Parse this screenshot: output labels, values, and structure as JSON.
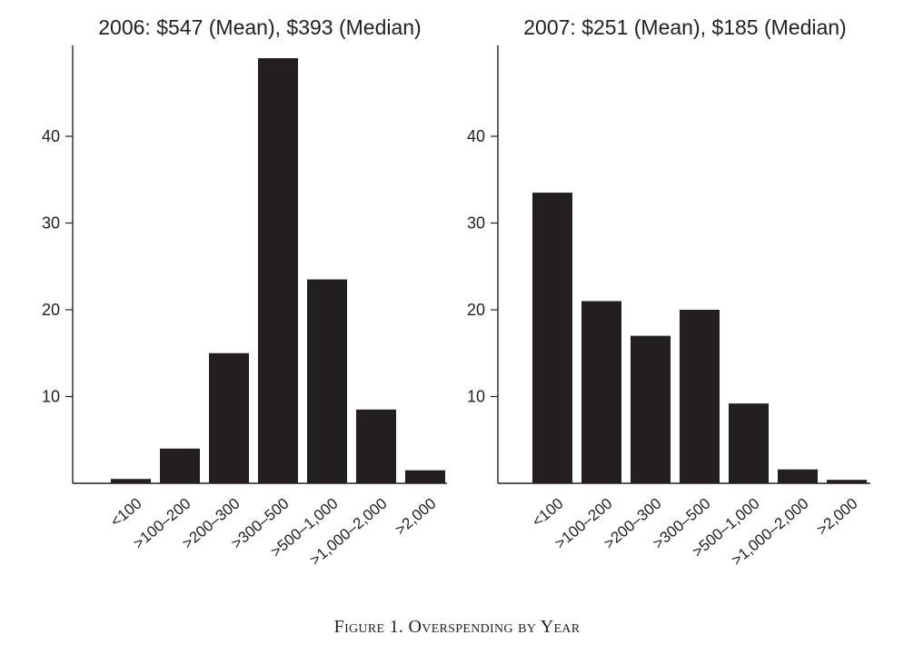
{
  "chart_data": [
    {
      "type": "bar",
      "title": "2006: $547 (Mean), $393 (Median)",
      "categories": [
        "<100",
        ">100–200",
        ">200–300",
        ">300–500",
        ">500–1,000",
        ">1,000–2,000",
        ">2,000"
      ],
      "values": [
        0.5,
        4,
        15,
        49,
        23.5,
        8.5,
        1.5
      ],
      "ylim": [
        0,
        50
      ],
      "yticks": [
        "10",
        "20",
        "30",
        "40"
      ],
      "xlabel": "",
      "ylabel": "",
      "grid": false
    },
    {
      "type": "bar",
      "title": "2007: $251 (Mean), $185 (Median)",
      "categories": [
        "<100",
        ">100–200",
        ">200–300",
        ">300–500",
        ">500–1,000",
        ">1,000–2,000",
        ">2,000"
      ],
      "values": [
        33.5,
        21,
        17,
        20,
        9.2,
        1.6,
        0.4
      ],
      "ylim": [
        0,
        50
      ],
      "yticks": [
        "10",
        "20",
        "30",
        "40"
      ],
      "xlabel": "",
      "ylabel": "",
      "grid": false
    }
  ],
  "caption": "Figure 1. Overspending by Year"
}
